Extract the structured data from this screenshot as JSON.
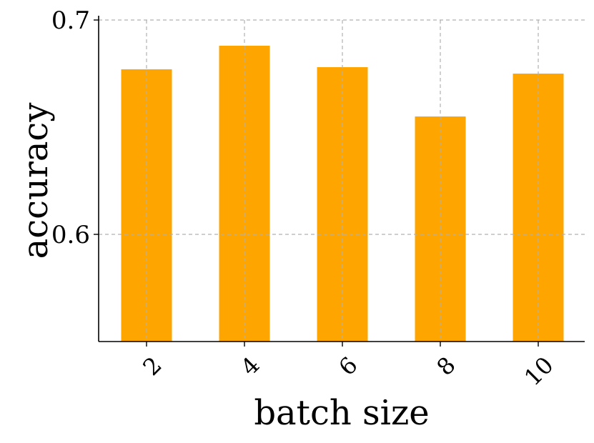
{
  "chart_data": {
    "type": "bar",
    "categories": [
      "2",
      "4",
      "6",
      "8",
      "10"
    ],
    "values": [
      0.677,
      0.688,
      0.678,
      0.655,
      0.675
    ],
    "xlabel": "batch size",
    "ylabel": "accuracy",
    "ylim": [
      0.55,
      0.7
    ],
    "yticks": [
      0.6,
      0.7
    ],
    "ytick_labels": [
      "0.6",
      "0.7"
    ],
    "grid": true,
    "colors": {
      "bar": "#FFA500",
      "grid": "#b0b0b0",
      "axis": "#000000"
    }
  }
}
